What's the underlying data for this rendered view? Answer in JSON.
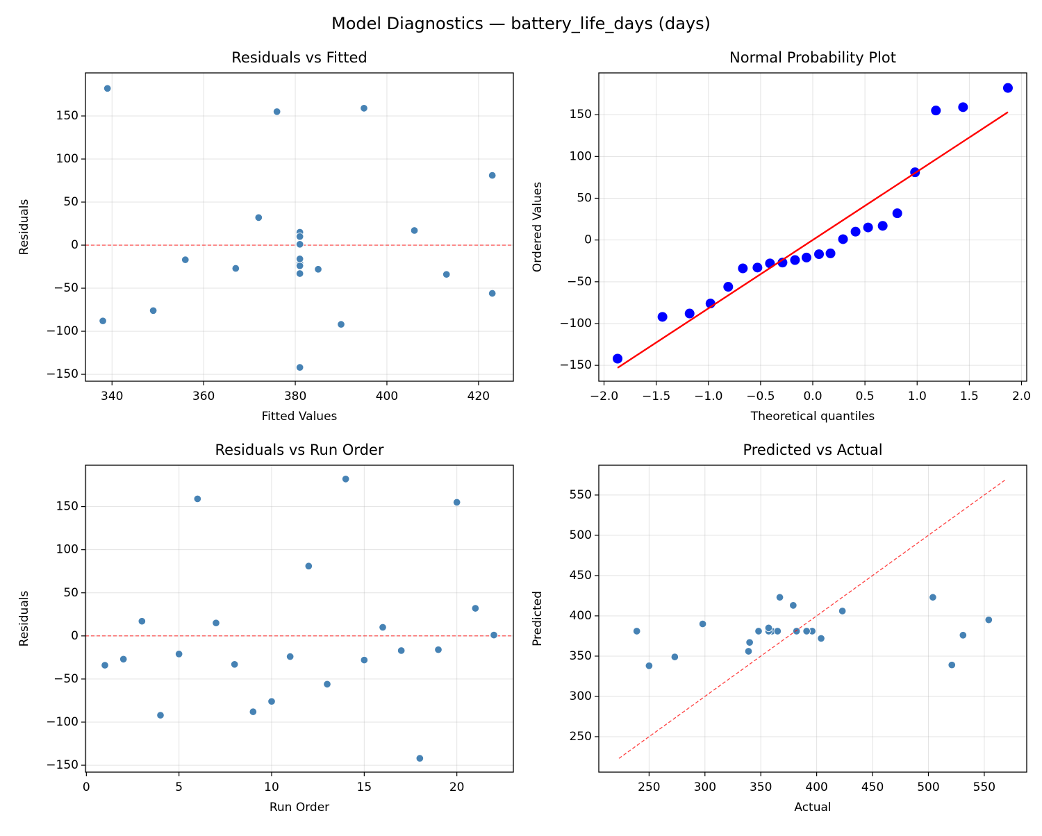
{
  "title": "Model Diagnostics — battery_life_days (days)",
  "chart_data": [
    {
      "type": "scatter",
      "title": "Residuals vs Fitted",
      "xlabel": "Fitted Values",
      "ylabel": "Residuals",
      "xlim": [
        334.2,
        427.6
      ],
      "ylim": [
        -158,
        200
      ],
      "xticks": [
        340,
        360,
        380,
        400,
        420
      ],
      "yticks": [
        {
          "value": -150,
          "label": "−150"
        },
        {
          "value": -100,
          "label": "−100"
        },
        {
          "value": -50,
          "label": "−50"
        },
        0,
        50,
        100,
        150
      ],
      "grid": true,
      "hline": 0,
      "hline_color": "#ff0000",
      "series": [
        {
          "style": "markers",
          "color": "#4682b4",
          "x": [
            413,
            367,
            406,
            390,
            381,
            395,
            381,
            381,
            338,
            349,
            381,
            423,
            423,
            339,
            385,
            381,
            356,
            381,
            381,
            376,
            372,
            381
          ],
          "values": [
            -34,
            -27,
            17,
            -92,
            -21,
            159,
            15,
            -33,
            -88,
            -76,
            -24,
            81,
            -56,
            182,
            -28,
            10,
            -17,
            -142,
            -16,
            155,
            32,
            1
          ]
        }
      ]
    },
    {
      "type": "scatter",
      "title": "Normal Probability Plot",
      "xlabel": "Theoretical quantiles",
      "ylabel": "Ordered Values",
      "xlim": [
        -2.05,
        2.05
      ],
      "ylim": [
        -169,
        200
      ],
      "xticks": [
        {
          "value": -2,
          "label": "−2.0"
        },
        {
          "value": -1.5,
          "label": "−1.5"
        },
        {
          "value": -1,
          "label": "−1.0"
        },
        {
          "value": -0.5,
          "label": "−0.5"
        },
        {
          "value": 0,
          "label": "0.0"
        },
        0.5,
        {
          "value": 1,
          "label": "1.0"
        },
        1.5,
        {
          "value": 2,
          "label": "2.0"
        }
      ],
      "yticks": [
        {
          "value": -150,
          "label": "−150"
        },
        {
          "value": -100,
          "label": "−100"
        },
        {
          "value": -50,
          "label": "−50"
        },
        0,
        50,
        100,
        150
      ],
      "grid": true,
      "series": [
        {
          "style": "markers",
          "color": "#0000ff",
          "x": [
            -1.87,
            -1.44,
            -1.18,
            -0.98,
            -0.81,
            -0.67,
            -0.53,
            -0.41,
            -0.29,
            -0.17,
            -0.06,
            0.06,
            0.17,
            0.29,
            0.41,
            0.53,
            0.67,
            0.81,
            0.98,
            1.18,
            1.44,
            1.87
          ],
          "values": [
            -142,
            -92,
            -88,
            -76,
            -56,
            -34,
            -33,
            -28,
            -27,
            -24,
            -21,
            -17,
            -16,
            1,
            10,
            15,
            17,
            32,
            81,
            155,
            159,
            182
          ]
        },
        {
          "style": "line",
          "color": "#ff0000",
          "x": [
            -1.87,
            1.87
          ],
          "values": [
            -153,
            153
          ]
        }
      ]
    },
    {
      "type": "scatter",
      "title": "Residuals vs Run Order",
      "xlabel": "Run Order",
      "ylabel": "Residuals",
      "xlim": [
        -0.05,
        23.05
      ],
      "ylim": [
        -158,
        198
      ],
      "xticks": [
        0,
        5,
        10,
        15,
        20
      ],
      "yticks": [
        {
          "value": -150,
          "label": "−150"
        },
        {
          "value": -100,
          "label": "−100"
        },
        {
          "value": -50,
          "label": "−50"
        },
        0,
        50,
        100,
        150
      ],
      "grid": true,
      "hline": 0,
      "hline_color": "#ff0000",
      "series": [
        {
          "style": "markers",
          "color": "#4682b4",
          "x": [
            1,
            2,
            3,
            4,
            5,
            6,
            7,
            8,
            9,
            10,
            11,
            12,
            13,
            14,
            15,
            16,
            17,
            18,
            19,
            20,
            21,
            22
          ],
          "values": [
            -34,
            -27,
            17,
            -92,
            -21,
            159,
            15,
            -33,
            -88,
            -76,
            -24,
            81,
            -56,
            182,
            -28,
            10,
            -17,
            -142,
            -16,
            155,
            32,
            1
          ]
        }
      ]
    },
    {
      "type": "scatter",
      "title": "Predicted vs Actual",
      "xlabel": "Actual",
      "ylabel": "Predicted",
      "xlim": [
        205,
        588
      ],
      "ylim": [
        206,
        587
      ],
      "xticks": [
        250,
        300,
        350,
        400,
        450,
        500,
        550
      ],
      "yticks": [
        250,
        300,
        350,
        400,
        450,
        500,
        550
      ],
      "grid": true,
      "series": [
        {
          "style": "markers",
          "color": "#4682b4",
          "x": [
            379,
            340,
            423,
            298,
            360,
            554,
            396,
            348,
            250,
            273,
            357,
            504,
            367,
            521,
            357,
            391,
            339,
            239,
            365,
            531,
            404,
            382
          ],
          "values": [
            413,
            367,
            406,
            390,
            381,
            395,
            381,
            381,
            338,
            349,
            381,
            423,
            423,
            339,
            385,
            381,
            356,
            381,
            381,
            376,
            372,
            381
          ]
        },
        {
          "style": "dashed",
          "color": "#ff0000",
          "x": [
            223,
            569
          ],
          "values": [
            223,
            569
          ]
        }
      ]
    }
  ]
}
